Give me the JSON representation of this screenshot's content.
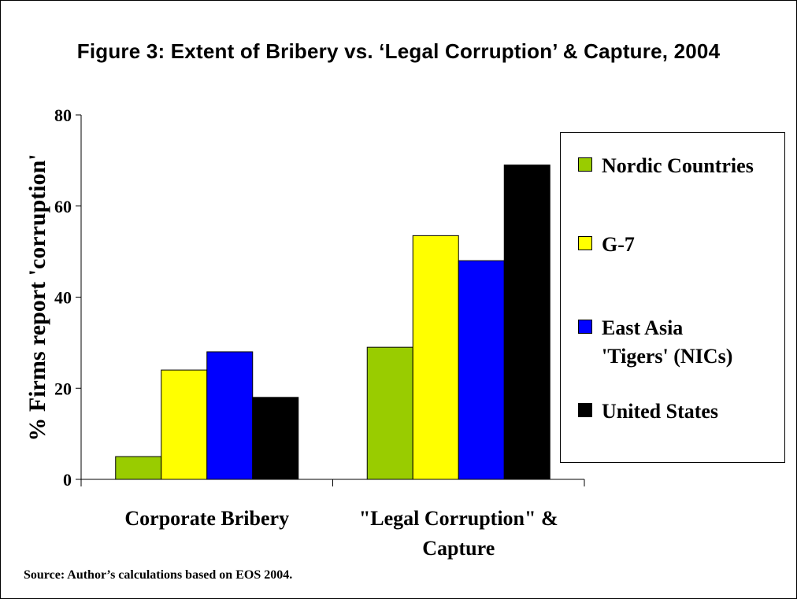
{
  "chart_data": {
    "type": "bar",
    "title": "Figure 3: Extent of Bribery vs. ‘Legal Corruption’ & Capture, 2004",
    "ylabel": "% Firms report 'corruption'",
    "xlabel": "",
    "categories": [
      "Corporate Bribery",
      "\"Legal Corruption\" &\nCapture"
    ],
    "series": [
      {
        "name": "Nordic Countries",
        "color": "#99cc00",
        "values": [
          5,
          29
        ]
      },
      {
        "name": "G-7",
        "color": "#ffff00",
        "values": [
          24,
          53.5
        ]
      },
      {
        "name": "East Asia\n'Tigers' (NICs)",
        "color": "#0000ff",
        "values": [
          28,
          48
        ]
      },
      {
        "name": "United States",
        "color": "#000000",
        "values": [
          18,
          69
        ]
      }
    ],
    "ylim": [
      0,
      80
    ],
    "yticks": [
      "0",
      "20",
      "40",
      "60",
      "80"
    ],
    "grid": false,
    "legend": "right"
  },
  "source": "Source: Author’s calculations based on EOS 2004."
}
